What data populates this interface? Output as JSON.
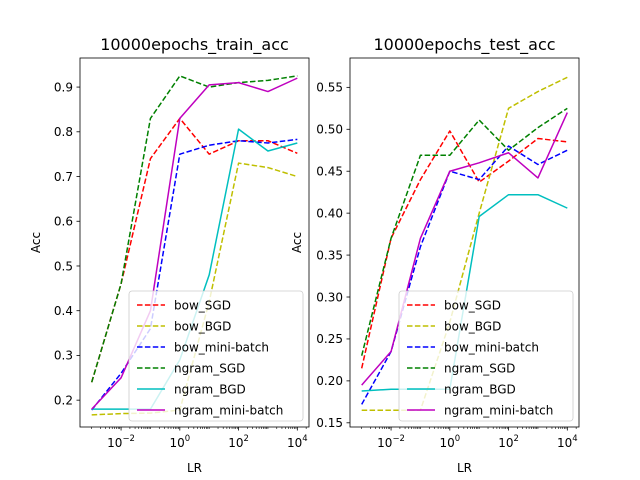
{
  "chart_data": [
    {
      "type": "line",
      "title": "10000epochs_train_acc",
      "xlabel": "LR",
      "ylabel": "Acc",
      "xscale": "log",
      "x": [
        0.001,
        0.01,
        0.1,
        1,
        10,
        100,
        1000,
        10000
      ],
      "xlim": [
        0.0004,
        25000
      ],
      "ylim": [
        0.14,
        0.965
      ],
      "xticks": [
        0.01,
        1,
        100,
        10000
      ],
      "xtick_labels": [
        [
          "10",
          "−2"
        ],
        [
          "10",
          "0"
        ],
        [
          "10",
          "2"
        ],
        [
          "10",
          "4"
        ]
      ],
      "yticks": [
        0.2,
        0.3,
        0.4,
        0.5,
        0.6,
        0.7,
        0.8,
        0.9
      ],
      "ytick_labels": [
        "0.2",
        "0.3",
        "0.4",
        "0.5",
        "0.6",
        "0.7",
        "0.8",
        "0.9"
      ],
      "grid": false,
      "legend": "lower-right",
      "series": [
        {
          "name": "bow_SGD",
          "color": "#ff0000",
          "dash": "dashed",
          "values": [
            0.24,
            0.46,
            0.74,
            0.83,
            0.75,
            0.78,
            0.78,
            0.752
          ]
        },
        {
          "name": "bow_BGD",
          "color": "#bfbf00",
          "dash": "dashed",
          "values": [
            0.167,
            0.17,
            0.171,
            0.178,
            0.42,
            0.73,
            0.72,
            0.7
          ]
        },
        {
          "name": "bow_mini-batch",
          "color": "#0000ff",
          "dash": "dashed",
          "values": [
            0.178,
            0.26,
            0.36,
            0.75,
            0.77,
            0.78,
            0.775,
            0.783
          ]
        },
        {
          "name": "ngram_SGD",
          "color": "#008000",
          "dash": "dashed",
          "values": [
            0.24,
            0.46,
            0.83,
            0.925,
            0.9,
            0.91,
            0.915,
            0.925
          ]
        },
        {
          "name": "ngram_BGD",
          "color": "#00bfbf",
          "dash": "solid",
          "values": [
            0.18,
            0.18,
            0.18,
            0.29,
            0.48,
            0.806,
            0.757,
            0.775
          ]
        },
        {
          "name": "ngram_mini-batch",
          "color": "#bf00bf",
          "dash": "solid",
          "values": [
            0.18,
            0.25,
            0.4,
            0.83,
            0.905,
            0.91,
            0.89,
            0.92
          ]
        }
      ]
    },
    {
      "type": "line",
      "title": "10000epochs_test_acc",
      "xlabel": "LR",
      "ylabel": "Acc",
      "xscale": "log",
      "x": [
        0.001,
        0.01,
        0.1,
        1,
        10,
        100,
        1000,
        10000
      ],
      "xlim": [
        0.0004,
        25000
      ],
      "ylim": [
        0.145,
        0.585
      ],
      "xticks": [
        0.01,
        1,
        100,
        10000
      ],
      "xtick_labels": [
        [
          "10",
          "−2"
        ],
        [
          "10",
          "0"
        ],
        [
          "10",
          "2"
        ],
        [
          "10",
          "4"
        ]
      ],
      "yticks": [
        0.15,
        0.2,
        0.25,
        0.3,
        0.35,
        0.4,
        0.45,
        0.5,
        0.55
      ],
      "ytick_labels": [
        "0.15",
        "0.20",
        "0.25",
        "0.30",
        "0.35",
        "0.40",
        "0.45",
        "0.50",
        "0.55"
      ],
      "grid": false,
      "legend": "lower-right",
      "series": [
        {
          "name": "bow_SGD",
          "color": "#ff0000",
          "dash": "dashed",
          "values": [
            0.215,
            0.37,
            0.44,
            0.498,
            0.437,
            0.462,
            0.489,
            0.485
          ]
        },
        {
          "name": "bow_BGD",
          "color": "#bfbf00",
          "dash": "dashed",
          "values": [
            0.165,
            0.165,
            0.165,
            0.27,
            0.4,
            0.525,
            0.545,
            0.562
          ]
        },
        {
          "name": "bow_mini-batch",
          "color": "#0000ff",
          "dash": "dashed",
          "values": [
            0.172,
            0.235,
            0.36,
            0.45,
            0.44,
            0.48,
            0.458,
            0.475
          ]
        },
        {
          "name": "ngram_SGD",
          "color": "#008000",
          "dash": "dashed",
          "values": [
            0.23,
            0.37,
            0.469,
            0.469,
            0.511,
            0.475,
            0.502,
            0.525
          ]
        },
        {
          "name": "ngram_BGD",
          "color": "#00bfbf",
          "dash": "solid",
          "values": [
            0.188,
            0.19,
            0.19,
            0.19,
            0.396,
            0.422,
            0.422,
            0.406
          ]
        },
        {
          "name": "ngram_mini-batch",
          "color": "#bf00bf",
          "dash": "solid",
          "values": [
            0.195,
            0.235,
            0.37,
            0.45,
            0.46,
            0.472,
            0.442,
            0.52
          ]
        }
      ]
    }
  ]
}
